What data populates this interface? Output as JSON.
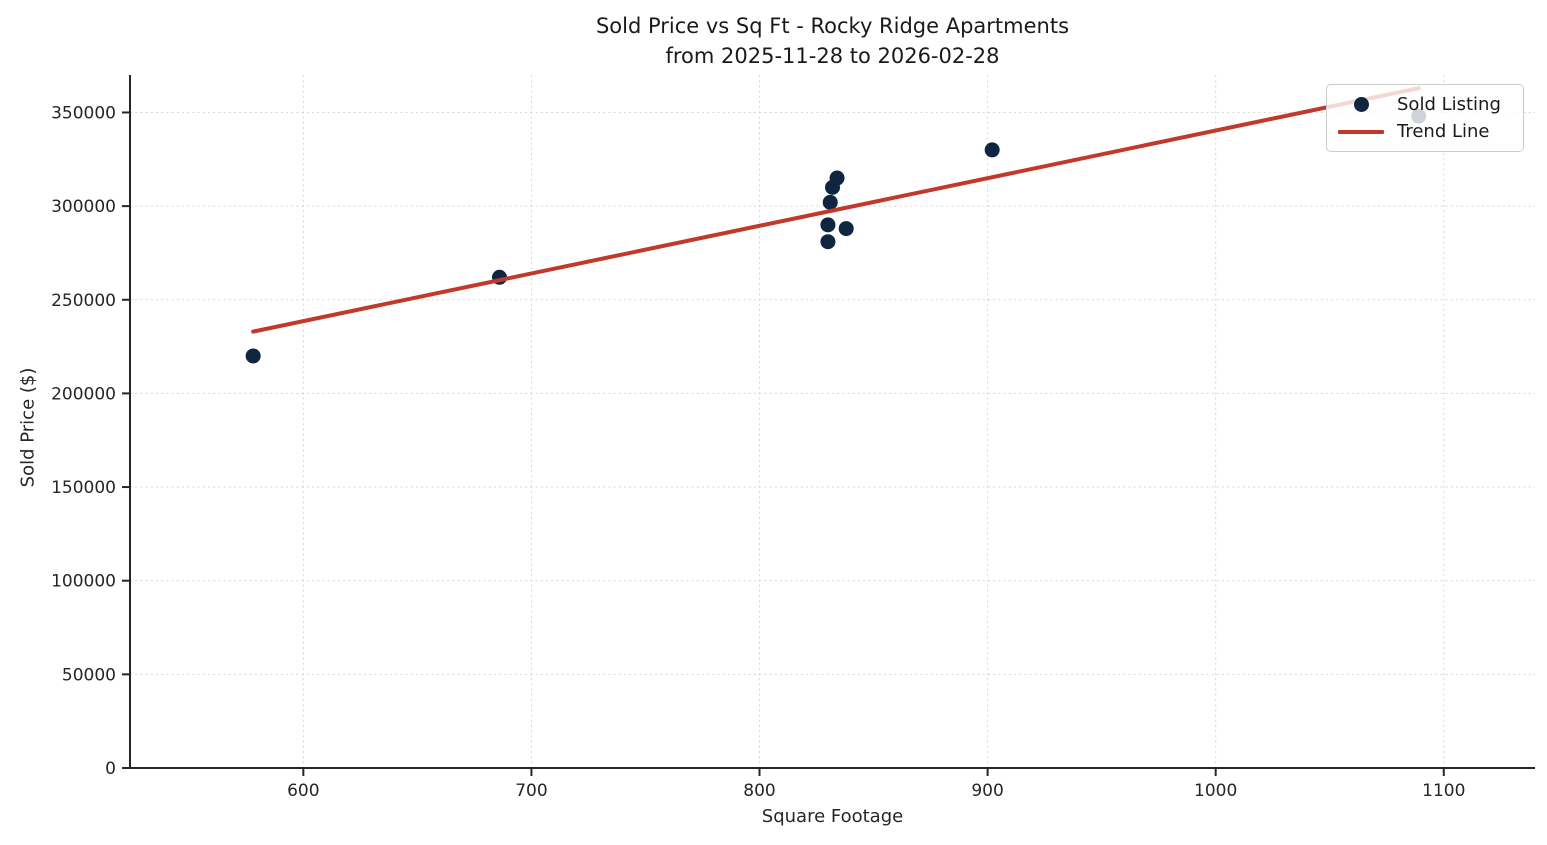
{
  "colors": {
    "point": "#0f2540",
    "trend": "#c0392b",
    "grid": "#c8c8c8",
    "spine": "#262626",
    "text": "#262626",
    "title_text": "#1a1a1a",
    "legend_border": "#cccccc"
  },
  "chart_data": {
    "type": "scatter",
    "title_lines": [
      "Sold Price vs Sq Ft - Rocky Ridge Apartments",
      "from 2025-11-28 to 2026-02-28"
    ],
    "xlabel": "Square Footage",
    "ylabel": "Sold Price ($)",
    "xlim": [
      524,
      1140
    ],
    "ylim": [
      0,
      370000
    ],
    "xticks": [
      600,
      700,
      800,
      900,
      1000,
      1100
    ],
    "yticks": [
      0,
      50000,
      100000,
      150000,
      200000,
      250000,
      300000,
      350000
    ],
    "grid": true,
    "legend": {
      "position": "upper right",
      "entries": [
        {
          "label": "Sold Listing",
          "marker": "point"
        },
        {
          "label": "Trend Line",
          "marker": "line"
        }
      ]
    },
    "series": [
      {
        "name": "Sold Listing",
        "type": "scatter",
        "points": [
          [
            578,
            220000
          ],
          [
            686,
            262000
          ],
          [
            834,
            315000
          ],
          [
            832,
            310000
          ],
          [
            831,
            302000
          ],
          [
            830,
            290000
          ],
          [
            838,
            288000
          ],
          [
            830,
            281000
          ],
          [
            902,
            330000
          ],
          [
            1089,
            348000
          ]
        ]
      },
      {
        "name": "Trend Line",
        "type": "line",
        "points": [
          [
            578,
            233000
          ],
          [
            1089,
            363000
          ]
        ]
      }
    ]
  }
}
